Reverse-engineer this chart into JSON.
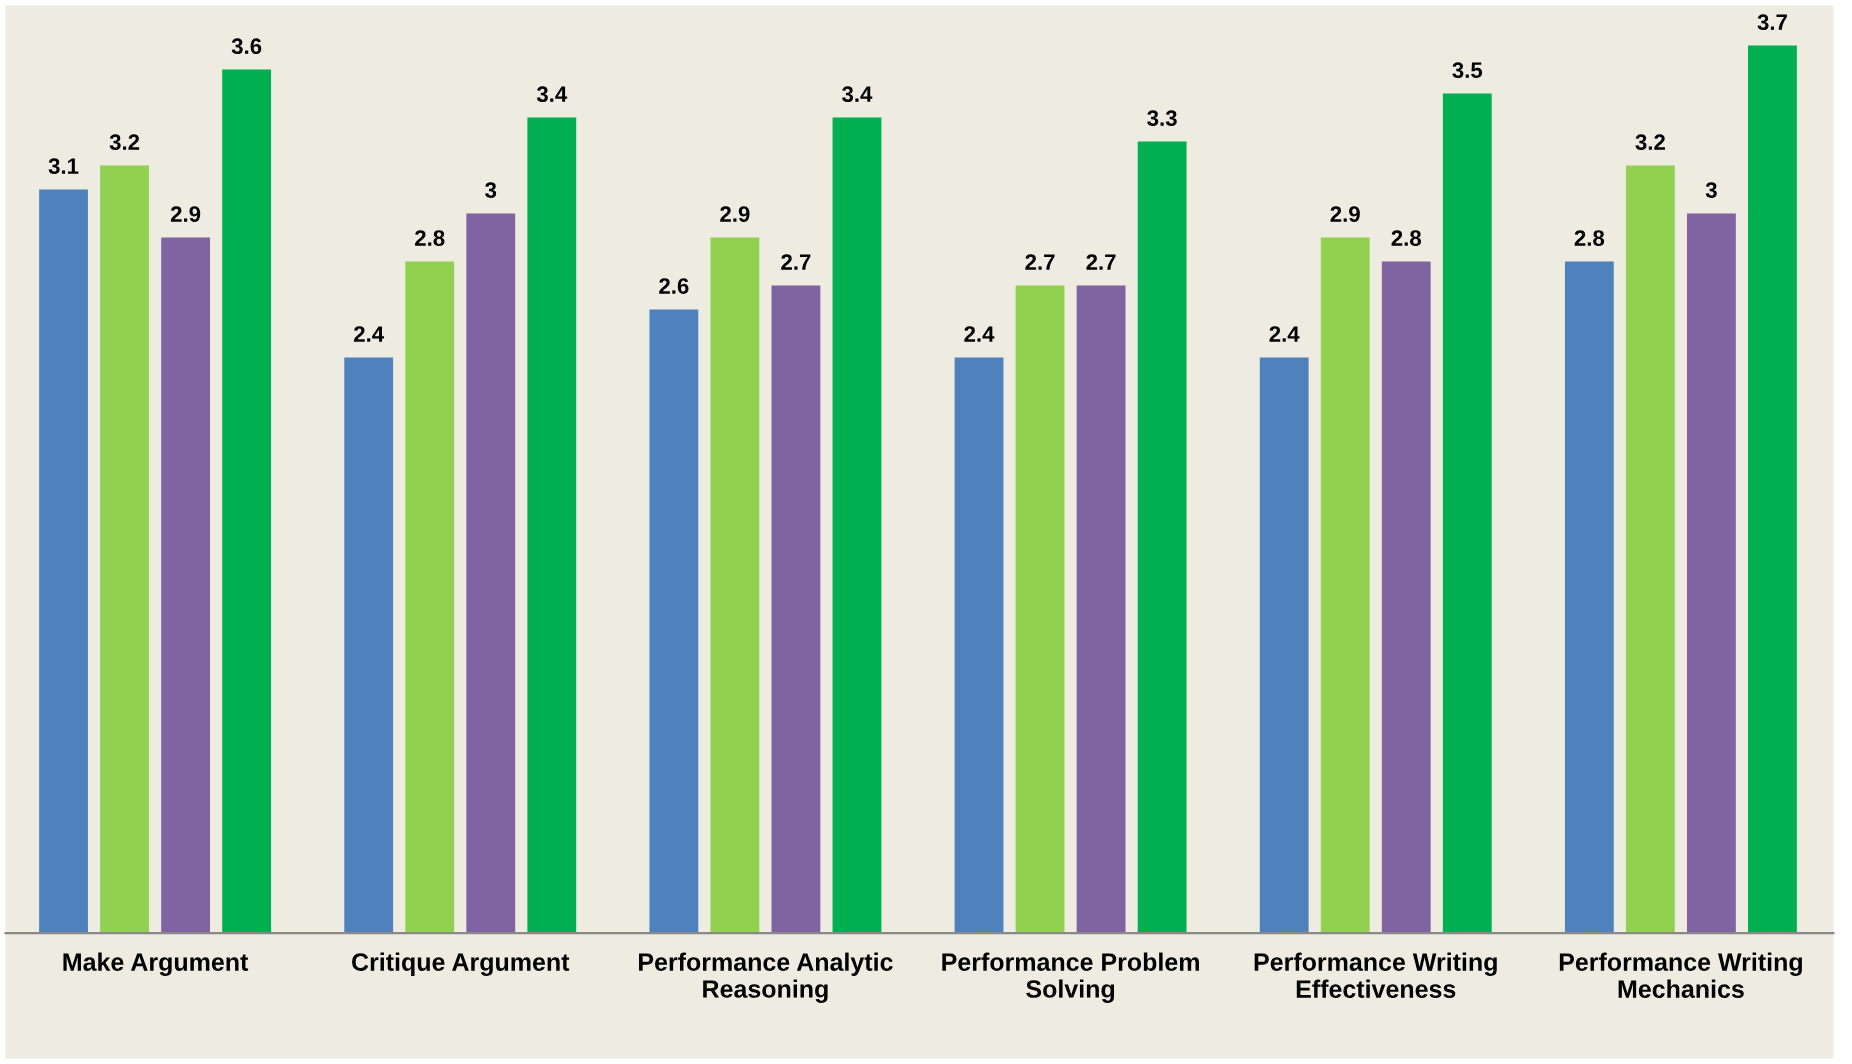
{
  "chart_data": {
    "type": "bar",
    "categories": [
      "Make Argument",
      "Critique Argument",
      "Performance Analytic\nReasoning",
      "Performance Problem\nSolving",
      "Performance Writing\nEffectiveness",
      "Performance Writing\nMechanics"
    ],
    "series": [
      {
        "color": "#4f81bd",
        "values": [
          3.1,
          2.4,
          2.6,
          2.4,
          2.4,
          2.8
        ]
      },
      {
        "color": "#92d050",
        "values": [
          3.2,
          2.8,
          2.9,
          2.7,
          2.9,
          3.2
        ]
      },
      {
        "color": "#8064a2",
        "values": [
          2.9,
          3,
          2.7,
          2.7,
          2.8,
          3
        ]
      },
      {
        "color": "#00b050",
        "values": [
          3.6,
          3.4,
          3.4,
          3.3,
          3.5,
          3.7
        ]
      }
    ],
    "ylim": [
      0,
      3.85
    ],
    "data_labels": true,
    "tick_labels": "x",
    "grid": false,
    "legend": false
  }
}
